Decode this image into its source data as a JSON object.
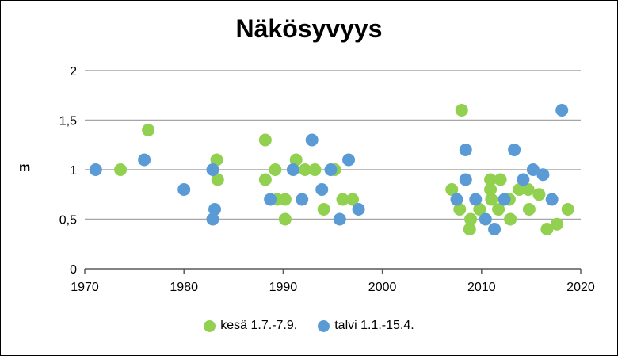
{
  "chart_data": {
    "type": "scatter",
    "title": "Näkösyvyys",
    "xlabel": "",
    "ylabel": "m",
    "xlim": [
      1970,
      2020
    ],
    "ylim": [
      0,
      2
    ],
    "x_ticks": [
      "1970",
      "1980",
      "1990",
      "2000",
      "2010",
      "2020"
    ],
    "y_ticks": [
      "0",
      "0,5",
      "1",
      "1,5",
      "2"
    ],
    "grid": "horizontal",
    "legend_position": "bottom",
    "series": [
      {
        "name": "kesä 1.7.-7.9.",
        "color": "#92d050",
        "points": [
          [
            1973.6,
            1.0
          ],
          [
            1976.4,
            1.4
          ],
          [
            1983.3,
            1.1
          ],
          [
            1983.4,
            0.9
          ],
          [
            1988.2,
            1.3
          ],
          [
            1988.2,
            0.9
          ],
          [
            1989.2,
            1.0
          ],
          [
            1989.4,
            0.7
          ],
          [
            1990.2,
            0.7
          ],
          [
            1990.2,
            0.5
          ],
          [
            1991.3,
            1.1
          ],
          [
            1992.2,
            1.0
          ],
          [
            1993.2,
            1.0
          ],
          [
            1994.1,
            0.6
          ],
          [
            1995.2,
            1.0
          ],
          [
            1996.0,
            0.7
          ],
          [
            1997.0,
            0.7
          ],
          [
            2007.0,
            0.8
          ],
          [
            2007.8,
            0.6
          ],
          [
            2008.0,
            1.6
          ],
          [
            2008.8,
            0.4
          ],
          [
            2008.9,
            0.5
          ],
          [
            2009.8,
            0.6
          ],
          [
            2010.9,
            0.9
          ],
          [
            2010.9,
            0.8
          ],
          [
            2011.0,
            0.7
          ],
          [
            2011.7,
            0.6
          ],
          [
            2011.9,
            0.9
          ],
          [
            2012.8,
            0.7
          ],
          [
            2012.9,
            0.5
          ],
          [
            2013.8,
            0.8
          ],
          [
            2014.7,
            0.8
          ],
          [
            2014.8,
            0.6
          ],
          [
            2015.8,
            0.75
          ],
          [
            2016.6,
            0.4
          ],
          [
            2017.6,
            0.45
          ],
          [
            2018.7,
            0.6
          ]
        ]
      },
      {
        "name": "talvi 1.1.-15.4.",
        "color": "#5b9bd5",
        "points": [
          [
            1971.1,
            1.0
          ],
          [
            1976.0,
            1.1
          ],
          [
            1980.0,
            0.8
          ],
          [
            1982.9,
            1.0
          ],
          [
            1983.1,
            0.6
          ],
          [
            1982.9,
            0.5
          ],
          [
            1988.7,
            0.7
          ],
          [
            1991.0,
            1.0
          ],
          [
            1991.9,
            0.7
          ],
          [
            1992.9,
            1.3
          ],
          [
            1993.9,
            0.8
          ],
          [
            1994.8,
            1.0
          ],
          [
            1995.7,
            0.5
          ],
          [
            1996.6,
            1.1
          ],
          [
            1997.6,
            0.6
          ],
          [
            2007.5,
            0.7
          ],
          [
            2008.4,
            1.2
          ],
          [
            2008.4,
            0.9
          ],
          [
            2009.4,
            0.7
          ],
          [
            2010.4,
            0.5
          ],
          [
            2011.3,
            0.4
          ],
          [
            2012.3,
            0.7
          ],
          [
            2013.3,
            1.2
          ],
          [
            2014.2,
            0.9
          ],
          [
            2015.2,
            1.0
          ],
          [
            2016.2,
            0.95
          ],
          [
            2017.1,
            0.7
          ],
          [
            2018.1,
            1.6
          ]
        ]
      }
    ]
  }
}
